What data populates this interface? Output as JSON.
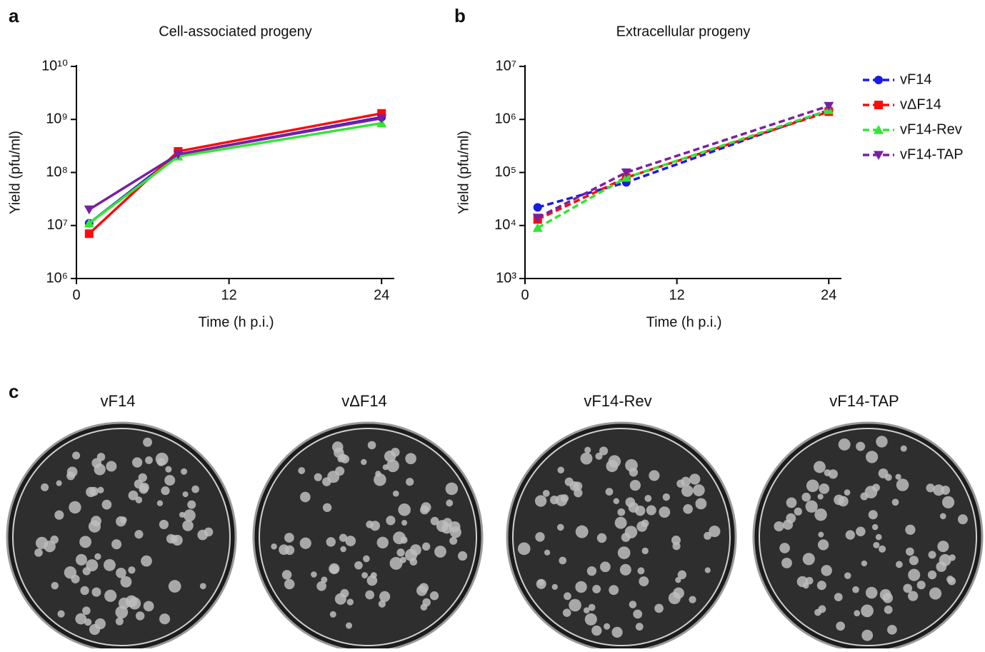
{
  "panel_labels": [
    "a",
    "b",
    "c"
  ],
  "chart_data": [
    {
      "type": "line",
      "title": "Cell-associated progeny",
      "xlabel": "Time (h p.i.)",
      "ylabel": "Yield (pfu/ml)",
      "x": [
        1,
        8,
        24
      ],
      "xlim": [
        0,
        25
      ],
      "xticks": [
        0,
        12,
        24
      ],
      "ylim": [
        1000000,
        10000000000
      ],
      "log_y": true,
      "yticks": [
        {
          "value": 1000000,
          "label": "10⁶"
        },
        {
          "value": 10000000,
          "label": "10⁷"
        },
        {
          "value": 100000000,
          "label": "10⁸"
        },
        {
          "value": 1000000000,
          "label": "10⁹"
        },
        {
          "value": 10000000000,
          "label": "10¹⁰"
        }
      ],
      "line_style": "solid",
      "series": [
        {
          "color": "#1a1ae6",
          "marker": "circle",
          "values": [
            11000000,
            220000000,
            1100000000
          ]
        },
        {
          "color": "#ff0a0a",
          "marker": "square",
          "values": [
            7000000,
            250000000,
            1300000000
          ]
        },
        {
          "color": "#33e633",
          "marker": "triangle-up",
          "values": [
            11000000,
            200000000,
            850000000
          ]
        },
        {
          "color": "#7b1fa2",
          "marker": "triangle-down",
          "values": [
            20000000,
            220000000,
            1050000000
          ]
        }
      ]
    },
    {
      "type": "line",
      "title": "Extracellular progeny",
      "xlabel": "Time (h p.i.)",
      "ylabel": "Yield (pfu/ml)",
      "x": [
        1,
        8,
        24
      ],
      "xlim": [
        0,
        25
      ],
      "xticks": [
        0,
        12,
        24
      ],
      "ylim": [
        1000,
        10000000
      ],
      "log_y": true,
      "yticks": [
        {
          "value": 1000,
          "label": "10³"
        },
        {
          "value": 10000,
          "label": "10⁴"
        },
        {
          "value": 100000,
          "label": "10⁵"
        },
        {
          "value": 1000000,
          "label": "10⁶"
        },
        {
          "value": 10000000,
          "label": "10⁷"
        }
      ],
      "line_style": "dashed",
      "legend": "right",
      "series": [
        {
          "name": "vF14",
          "color": "#1a1ae6",
          "marker": "circle",
          "values": [
            22000,
            65000,
            1500000
          ]
        },
        {
          "name": "vΔF14",
          "color": "#ff0a0a",
          "marker": "square",
          "values": [
            13000,
            80000,
            1400000
          ]
        },
        {
          "name": "vF14-Rev",
          "color": "#33e633",
          "marker": "triangle-up",
          "values": [
            9000,
            80000,
            1500000
          ]
        },
        {
          "name": "vF14-TAP",
          "color": "#7b1fa2",
          "marker": "triangle-down",
          "values": [
            14000,
            100000,
            1800000
          ]
        }
      ]
    }
  ],
  "plates": {
    "labels": [
      "vF14",
      "vΔF14",
      "vF14-Rev",
      "vF14-TAP"
    ]
  }
}
